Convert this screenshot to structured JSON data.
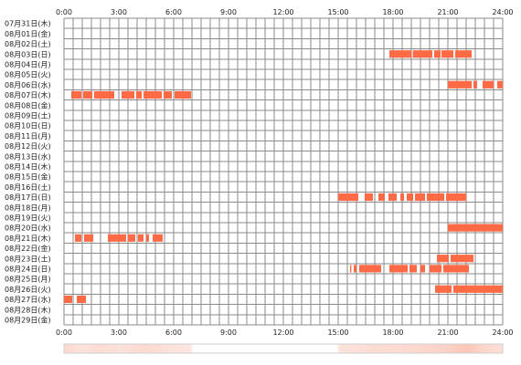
{
  "chart_data": {
    "type": "heatmap",
    "title": "",
    "xlabel": "",
    "ylabel": "",
    "xlim": [
      0,
      24
    ],
    "x_ticks": [
      "0:00",
      "3:00",
      "6:00",
      "9:00",
      "12:00",
      "15:00",
      "18:00",
      "21:00",
      "24:00"
    ],
    "grid": true,
    "grid_step_hours": 0.5,
    "dates": [
      "07月31日(木)",
      "08月01日(金)",
      "08月02日(土)",
      "08月03日(日)",
      "08月04日(月)",
      "08月05日(火)",
      "08月06日(水)",
      "08月07日(木)",
      "08月08日(金)",
      "08月09日(土)",
      "08月10日(日)",
      "08月11日(月)",
      "08月12日(火)",
      "08月13日(水)",
      "08月14日(木)",
      "08月15日(金)",
      "08月16日(土)",
      "08月17日(日)",
      "08月18日(月)",
      "08月19日(火)",
      "08月20日(水)",
      "08月21日(木)",
      "08月22日(金)",
      "08月23日(土)",
      "08月24日(日)",
      "08月25日(月)",
      "08月26日(火)",
      "08月27日(水)",
      "08月28日(木)",
      "08月29日(金)"
    ],
    "series_color": "#ff6a46",
    "activity": [
      {
        "date_index": 3,
        "spans": [
          [
            17.8,
            19.0
          ],
          [
            19.08,
            20.15
          ],
          [
            20.25,
            20.6
          ],
          [
            20.65,
            21.3
          ],
          [
            21.4,
            22.3
          ]
        ]
      },
      {
        "date_index": 6,
        "spans": [
          [
            21.0,
            22.3
          ],
          [
            22.4,
            22.6
          ],
          [
            22.9,
            23.5
          ],
          [
            23.7,
            24.0
          ]
        ]
      },
      {
        "date_index": 7,
        "spans": [
          [
            0.4,
            0.95
          ],
          [
            1.05,
            1.55
          ],
          [
            1.65,
            2.75
          ],
          [
            3.15,
            3.85
          ],
          [
            3.95,
            4.25
          ],
          [
            4.35,
            5.35
          ],
          [
            5.45,
            5.9
          ],
          [
            6.05,
            6.95
          ]
        ]
      },
      {
        "date_index": 17,
        "spans": [
          [
            15.0,
            16.1
          ],
          [
            16.45,
            16.9
          ],
          [
            17.2,
            17.55
          ],
          [
            17.75,
            18.2
          ],
          [
            18.4,
            18.6
          ],
          [
            18.75,
            19.1
          ],
          [
            19.2,
            19.75
          ],
          [
            19.85,
            20.8
          ],
          [
            20.9,
            22.0
          ]
        ]
      },
      {
        "date_index": 20,
        "spans": [
          [
            21.0,
            24.0
          ]
        ]
      },
      {
        "date_index": 21,
        "spans": [
          [
            0.6,
            0.95
          ],
          [
            1.1,
            1.6
          ],
          [
            2.4,
            3.4
          ],
          [
            3.5,
            3.9
          ],
          [
            4.05,
            4.35
          ],
          [
            4.5,
            4.65
          ],
          [
            4.85,
            5.4
          ]
        ]
      },
      {
        "date_index": 23,
        "spans": [
          [
            20.4,
            21.05
          ],
          [
            21.15,
            22.4
          ]
        ]
      },
      {
        "date_index": 24,
        "spans": [
          [
            15.65,
            15.72
          ],
          [
            15.85,
            16.0
          ],
          [
            16.15,
            17.35
          ],
          [
            17.8,
            18.8
          ],
          [
            18.9,
            19.3
          ],
          [
            19.5,
            19.75
          ],
          [
            20.0,
            20.65
          ],
          [
            20.75,
            22.15
          ]
        ]
      },
      {
        "date_index": 26,
        "spans": [
          [
            20.3,
            21.2
          ],
          [
            21.3,
            24.0
          ]
        ]
      },
      {
        "date_index": 27,
        "spans": [
          [
            0.0,
            0.45
          ],
          [
            0.7,
            1.2
          ]
        ]
      }
    ],
    "summary_bar": {
      "stops": [
        [
          0.0,
          "#fcd8cf"
        ],
        [
          1.0,
          "#fde3dc"
        ],
        [
          2.0,
          "#fcdcd3"
        ],
        [
          3.0,
          "#fbe2da"
        ],
        [
          4.5,
          "#fcd9cf"
        ],
        [
          6.0,
          "#fde3dc"
        ],
        [
          6.9,
          "#fde6e0"
        ],
        [
          7.1,
          "#ffffff"
        ],
        [
          14.9,
          "#ffffff"
        ],
        [
          15.1,
          "#fde3dc"
        ],
        [
          17.0,
          "#fbdcd3"
        ],
        [
          19.0,
          "#fcd9cf"
        ],
        [
          21.0,
          "#fbd2c6"
        ],
        [
          22.0,
          "#fbc6b8"
        ],
        [
          23.0,
          "#fdd6cb"
        ],
        [
          24.0,
          "#fde0d8"
        ]
      ]
    }
  }
}
